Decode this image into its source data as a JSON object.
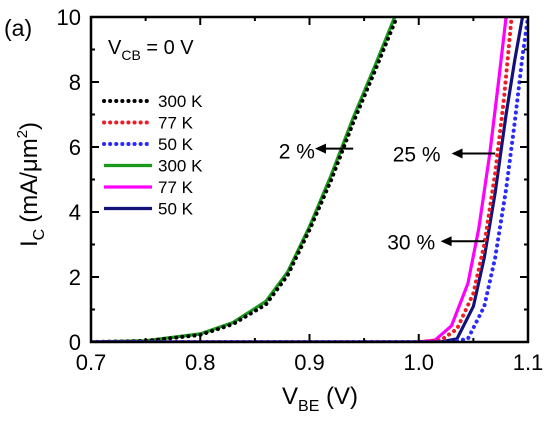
{
  "chart_data": {
    "type": "line",
    "panel_label": "(a)",
    "condition": {
      "main": "V",
      "sub": "CB",
      "rest": " = 0 V"
    },
    "xlabel": {
      "main": "V",
      "sub": "BE",
      "rest": " (V)"
    },
    "ylabel": {
      "main": "I",
      "sub": "C",
      "rest": "(mA/μm",
      "sup": "2",
      "end": ")"
    },
    "xlim": [
      0.7,
      1.1
    ],
    "ylim": [
      0,
      10
    ],
    "xticks": [
      "0.7",
      "0.8",
      "0.9",
      "1.0",
      "1.1"
    ],
    "yticks": [
      "0",
      "2",
      "4",
      "6",
      "8",
      "10"
    ],
    "grid": false,
    "legend_position": "top-left",
    "series": [
      {
        "name": "300 K",
        "color": "#000000",
        "style": "dotted",
        "x": [
          0.7,
          0.75,
          0.8,
          0.83,
          0.86,
          0.88,
          0.9,
          0.92,
          0.94,
          0.96,
          0.98
        ],
        "y": [
          0.0,
          0.03,
          0.22,
          0.55,
          1.15,
          2.05,
          3.45,
          5.0,
          6.75,
          8.35,
          10.0
        ]
      },
      {
        "name": "77 K",
        "color": "#ee1c24",
        "style": "dotted",
        "x": [
          0.7,
          1.0,
          1.02,
          1.035,
          1.05,
          1.06,
          1.07,
          1.078,
          1.085
        ],
        "y": [
          0.0,
          0.0,
          0.05,
          0.4,
          1.5,
          3.0,
          5.2,
          7.5,
          10.0
        ]
      },
      {
        "name": "50 K",
        "color": "#2a2aff",
        "style": "dotted",
        "x": [
          0.7,
          1.03,
          1.045,
          1.06,
          1.07,
          1.08,
          1.088,
          1.095,
          1.1
        ],
        "y": [
          0.0,
          0.0,
          0.1,
          1.1,
          2.6,
          4.7,
          6.8,
          8.8,
          10.0
        ]
      },
      {
        "name": "300 K",
        "color": "#1a9a1a",
        "style": "solid",
        "x": [
          0.7,
          0.75,
          0.8,
          0.83,
          0.86,
          0.88,
          0.9,
          0.92,
          0.94,
          0.96,
          0.978
        ],
        "y": [
          0.0,
          0.04,
          0.25,
          0.6,
          1.25,
          2.15,
          3.55,
          5.15,
          6.9,
          8.5,
          10.0
        ]
      },
      {
        "name": "77 K",
        "color": "#ff00ff",
        "style": "solid",
        "x": [
          0.7,
          1.0,
          1.015,
          1.03,
          1.045,
          1.055,
          1.065,
          1.073,
          1.08
        ],
        "y": [
          0.0,
          0.0,
          0.06,
          0.5,
          1.8,
          3.5,
          5.8,
          8.0,
          10.0
        ]
      },
      {
        "name": "50 K",
        "color": "#12127a",
        "style": "solid",
        "x": [
          0.7,
          1.02,
          1.035,
          1.05,
          1.06,
          1.07,
          1.08,
          1.088,
          1.095
        ],
        "y": [
          0.0,
          0.0,
          0.1,
          1.1,
          2.6,
          4.6,
          7.0,
          8.7,
          10.0
        ]
      }
    ],
    "annotations": [
      {
        "text": "2 %",
        "x": 0.905,
        "y": 5.9,
        "arrow_from": [
          0.94,
          5.95
        ],
        "arrow_to": [
          0.905,
          5.95
        ]
      },
      {
        "text": "25 %",
        "x": 1.02,
        "y": 5.8,
        "arrow_from": [
          1.07,
          5.8
        ],
        "arrow_to": [
          1.03,
          5.8
        ]
      },
      {
        "text": "30 %",
        "x": 1.015,
        "y": 3.1,
        "arrow_from": [
          1.06,
          3.1
        ],
        "arrow_to": [
          1.02,
          3.1
        ]
      }
    ]
  }
}
